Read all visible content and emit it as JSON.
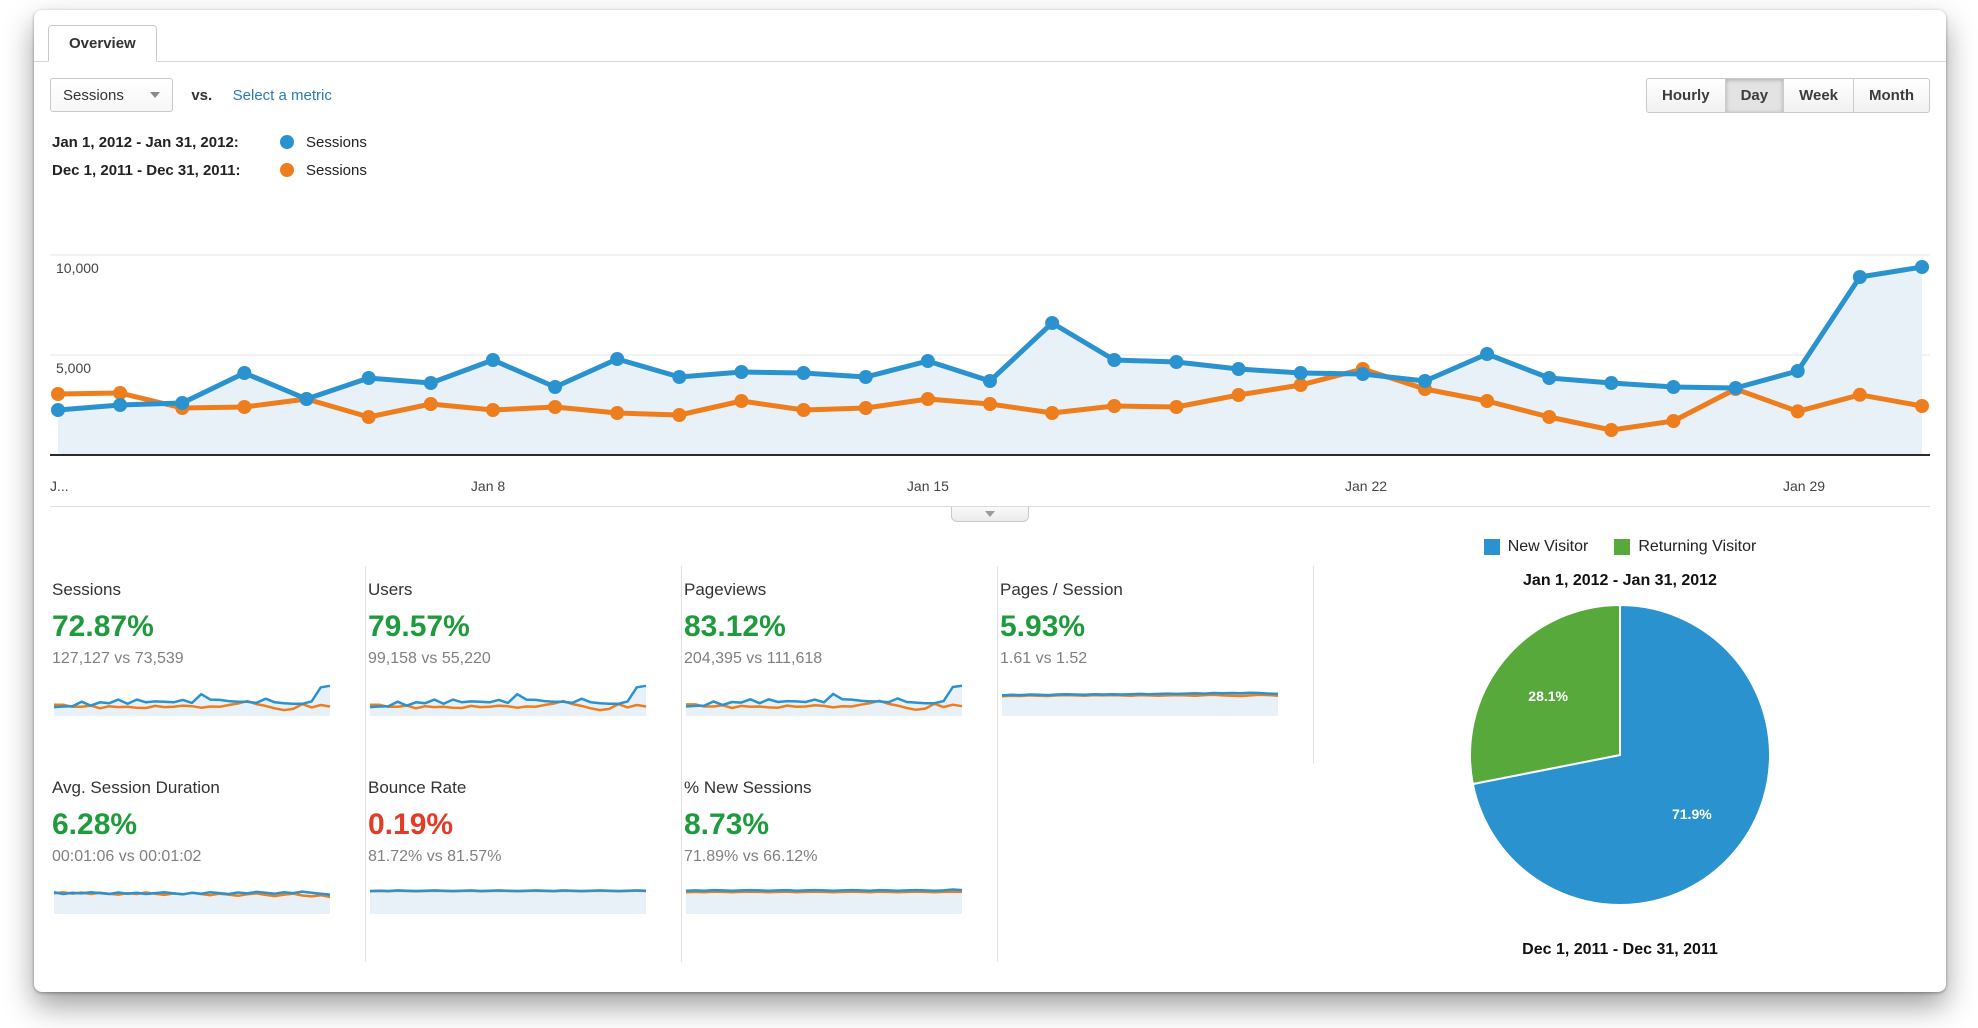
{
  "tab": {
    "label": "Overview"
  },
  "controls": {
    "metric_selector": {
      "value": "Sessions"
    },
    "vs_label": "vs.",
    "select_metric_link": "Select a metric",
    "granularity": {
      "options": [
        "Hourly",
        "Day",
        "Week",
        "Month"
      ],
      "selected": "Day"
    }
  },
  "legend": [
    {
      "range": "Jan 1, 2012 - Jan 31, 2012:",
      "metric": "Sessions",
      "color": "#2a93cf"
    },
    {
      "range": "Dec 1, 2011 - Dec 31, 2011:",
      "metric": "Sessions",
      "color": "#ee7d1e"
    }
  ],
  "colors": {
    "current_series": "#2a93cf",
    "previous_series": "#ee7d1e",
    "returning_green": "#57a93c",
    "area_fill": "#e8f1f8",
    "positive": "#1e9b3c",
    "negative": "#e23b28"
  },
  "chart_data": [
    {
      "type": "line",
      "title": "Sessions comparison by day",
      "x_labels": [
        "J...",
        "Jan 8",
        "Jan 15",
        "Jan 22",
        "Jan 29"
      ],
      "x_label_days": [
        1,
        8,
        15,
        22,
        29
      ],
      "days": 31,
      "y_ticks": [
        5000,
        10000
      ],
      "ylim": [
        0,
        10500
      ],
      "grid": true,
      "legend_position": "top-left",
      "series": [
        {
          "name": "Sessions (Jan 1, 2012 - Jan 31, 2012)",
          "color": "#2a93cf",
          "area": true,
          "values": [
            2250,
            2500,
            2600,
            4100,
            2800,
            3850,
            3600,
            4750,
            3400,
            4800,
            3900,
            4150,
            4100,
            3900,
            4700,
            3700,
            6600,
            4750,
            4650,
            4300,
            4100,
            4050,
            3700,
            5050,
            3850,
            3600,
            3400,
            3350,
            4200,
            8900,
            9400
          ]
        },
        {
          "name": "Sessions (Dec 1, 2011 - Dec 31, 2011)",
          "color": "#ee7d1e",
          "area": false,
          "values": [
            3050,
            3100,
            2350,
            2400,
            2800,
            1900,
            2550,
            2250,
            2400,
            2100,
            2000,
            2700,
            2250,
            2350,
            2800,
            2550,
            2100,
            2450,
            2400,
            3000,
            3500,
            4300,
            3300,
            2700,
            1900,
            1250,
            1700,
            3300,
            2180,
            3010,
            2450
          ]
        }
      ]
    },
    {
      "type": "pie",
      "title_top": "Jan 1, 2012 - Jan 31, 2012",
      "title_bottom": "Dec 1, 2011 - Dec 31, 2011",
      "legend": [
        "New Visitor",
        "Returning Visitor"
      ],
      "slices": [
        {
          "label": "New Visitor",
          "value": 71.9,
          "display": "71.9%",
          "color": "#2a93cf"
        },
        {
          "label": "Returning Visitor",
          "value": 28.1,
          "display": "28.1%",
          "color": "#57a93c"
        }
      ]
    }
  ],
  "metrics": [
    {
      "label": "Sessions",
      "change": "72.87%",
      "trend": "up",
      "detail": "127,127 vs 73,539",
      "spark": {
        "current": [
          2.3,
          2.5,
          2.6,
          4.1,
          2.8,
          3.9,
          3.6,
          4.8,
          3.4,
          4.8,
          3.9,
          4.2,
          4.1,
          3.9,
          4.7,
          3.7,
          6.6,
          4.8,
          4.7,
          4.3,
          4.1,
          4.1,
          3.7,
          5.1,
          3.9,
          3.6,
          3.4,
          3.4,
          4.2,
          8.9,
          9.4
        ],
        "previous": [
          3.1,
          3.1,
          2.4,
          2.4,
          2.8,
          1.9,
          2.6,
          2.3,
          2.4,
          2.1,
          2.0,
          2.7,
          2.3,
          2.4,
          2.8,
          2.6,
          2.1,
          2.5,
          2.4,
          3.0,
          3.5,
          4.3,
          3.3,
          2.7,
          1.9,
          1.3,
          1.7,
          3.3,
          2.2,
          3.0,
          2.5
        ]
      }
    },
    {
      "label": "Users",
      "change": "79.57%",
      "trend": "up",
      "detail": "99,158 vs 55,220",
      "spark": {
        "current": [
          2.3,
          2.5,
          2.6,
          4.1,
          2.8,
          3.9,
          3.6,
          4.8,
          3.4,
          4.8,
          3.9,
          4.2,
          4.1,
          3.9,
          4.7,
          3.7,
          6.6,
          4.8,
          4.7,
          4.3,
          4.1,
          4.1,
          3.7,
          5.1,
          3.9,
          3.6,
          3.4,
          3.4,
          4.2,
          8.9,
          9.4
        ],
        "previous": [
          3.1,
          3.1,
          2.4,
          2.4,
          2.8,
          1.9,
          2.6,
          2.3,
          2.4,
          2.1,
          2.0,
          2.7,
          2.3,
          2.4,
          2.8,
          2.6,
          2.1,
          2.5,
          2.4,
          3.0,
          3.5,
          4.3,
          3.3,
          2.7,
          1.9,
          1.3,
          1.7,
          3.3,
          2.2,
          3.0,
          2.5
        ]
      }
    },
    {
      "label": "Pageviews",
      "change": "83.12%",
      "trend": "up",
      "detail": "204,395 vs 111,618",
      "spark": {
        "current": [
          2.5,
          2.7,
          2.8,
          4.2,
          3.0,
          4.0,
          3.8,
          4.9,
          3.6,
          4.9,
          4.0,
          4.3,
          4.2,
          4.0,
          4.8,
          3.9,
          6.7,
          4.9,
          4.8,
          4.4,
          4.2,
          4.2,
          3.9,
          5.2,
          4.0,
          3.8,
          3.6,
          3.6,
          4.3,
          9.0,
          9.4
        ],
        "previous": [
          3.2,
          3.2,
          2.5,
          2.5,
          2.9,
          2.0,
          2.7,
          2.4,
          2.5,
          2.2,
          2.1,
          2.8,
          2.4,
          2.5,
          2.9,
          2.7,
          2.2,
          2.6,
          2.5,
          3.1,
          3.6,
          4.4,
          3.4,
          2.8,
          2.0,
          1.4,
          1.8,
          3.4,
          2.3,
          3.1,
          2.6
        ]
      }
    },
    {
      "label": "Pages / Session",
      "change": "5.93%",
      "trend": "up",
      "detail": "1.61 vs 1.52",
      "spark": {
        "current": [
          6.2,
          6.4,
          6.3,
          6.5,
          6.4,
          6.3,
          6.5,
          6.6,
          6.5,
          6.4,
          6.6,
          6.5,
          6.6,
          6.5,
          6.6,
          6.7,
          6.6,
          6.7,
          6.8,
          6.7,
          6.8,
          6.9,
          6.8,
          7.0,
          6.9,
          7.0,
          6.9,
          7.1,
          7.0,
          6.8,
          6.7
        ],
        "previous": [
          5.9,
          6.1,
          6.0,
          6.2,
          6.1,
          6.0,
          6.2,
          6.3,
          6.2,
          6.1,
          6.3,
          6.2,
          6.3,
          6.2,
          6.1,
          6.3,
          6.2,
          6.1,
          6.2,
          6.3,
          6.2,
          6.1,
          6.3,
          6.4,
          6.2,
          6.1,
          6.0,
          6.2,
          6.4,
          6.3,
          6.1
        ]
      }
    },
    {
      "label": "Avg. Session Duration",
      "change": "6.28%",
      "trend": "up",
      "detail": "00:01:06 vs 00:01:02",
      "spark": {
        "current": [
          6.6,
          6.0,
          6.4,
          6.2,
          6.6,
          6.3,
          6.0,
          6.5,
          6.1,
          6.4,
          6.0,
          6.3,
          6.6,
          6.2,
          5.9,
          6.4,
          6.1,
          6.6,
          6.3,
          6.0,
          6.5,
          6.2,
          6.7,
          6.4,
          6.1,
          6.6,
          6.3,
          6.8,
          6.4,
          6.1,
          5.8
        ],
        "previous": [
          6.2,
          6.6,
          6.1,
          6.5,
          6.0,
          6.4,
          6.1,
          5.8,
          6.3,
          6.0,
          6.5,
          6.1,
          5.7,
          6.2,
          5.9,
          6.4,
          6.0,
          5.6,
          6.1,
          5.8,
          5.4,
          5.9,
          6.2,
          5.7,
          5.3,
          5.8,
          6.1,
          5.5,
          5.2,
          5.6,
          5.0
        ]
      }
    },
    {
      "label": "Bounce Rate",
      "change": "0.19%",
      "trend": "down",
      "detail": "81.72% vs 81.57%",
      "spark": {
        "current": [
          7.0,
          7.1,
          7.0,
          7.2,
          7.1,
          7.0,
          7.1,
          7.2,
          7.1,
          7.0,
          7.1,
          7.2,
          7.0,
          7.1,
          7.2,
          7.1,
          7.0,
          7.1,
          7.2,
          7.1,
          7.0,
          7.2,
          7.1,
          7.0,
          7.1,
          7.2,
          7.1,
          7.0,
          7.1,
          7.2,
          7.1
        ],
        "previous": [
          6.9,
          7.0,
          6.9,
          7.1,
          7.0,
          6.9,
          7.0,
          7.1,
          7.0,
          6.9,
          7.0,
          7.1,
          6.9,
          7.0,
          7.1,
          7.0,
          6.9,
          7.0,
          7.1,
          7.0,
          6.9,
          7.1,
          7.0,
          6.9,
          7.0,
          7.1,
          7.0,
          6.9,
          7.0,
          7.1,
          7.0
        ]
      }
    },
    {
      "label": "% New Sessions",
      "change": "8.73%",
      "trend": "up",
      "detail": "71.89% vs 66.12%",
      "spark": {
        "current": [
          7.1,
          7.2,
          7.1,
          7.3,
          7.2,
          7.1,
          7.2,
          7.3,
          7.2,
          7.1,
          7.2,
          7.3,
          7.1,
          7.2,
          7.3,
          7.2,
          7.1,
          7.2,
          7.3,
          7.2,
          7.1,
          7.3,
          7.2,
          7.1,
          7.2,
          7.3,
          7.2,
          7.1,
          7.2,
          7.5,
          7.3
        ],
        "previous": [
          6.6,
          6.7,
          6.6,
          6.8,
          6.7,
          6.6,
          6.7,
          6.8,
          6.7,
          6.6,
          6.7,
          6.8,
          6.6,
          6.7,
          6.8,
          6.7,
          6.6,
          6.7,
          6.8,
          6.7,
          6.6,
          6.8,
          6.7,
          6.6,
          6.7,
          6.8,
          6.7,
          6.6,
          6.7,
          6.8,
          6.7
        ]
      }
    }
  ],
  "pie_section": {
    "legend": [
      {
        "label": "New Visitor",
        "color": "#2a93cf"
      },
      {
        "label": "Returning Visitor",
        "color": "#57a93c"
      }
    ],
    "title_top": "Jan 1, 2012 - Jan 31, 2012",
    "title_bottom": "Dec 1, 2011 - Dec 31, 2011"
  }
}
